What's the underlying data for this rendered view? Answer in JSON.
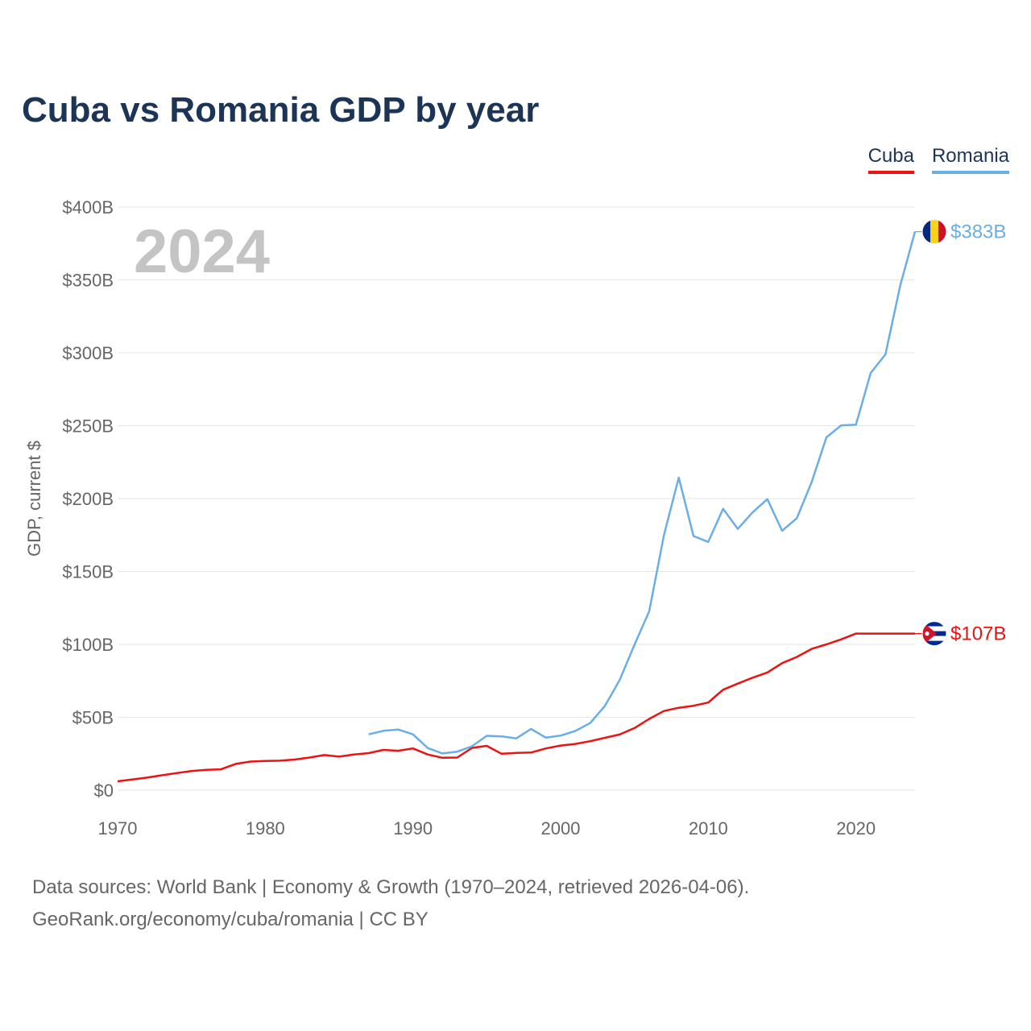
{
  "title": "Cuba vs Romania GDP by year",
  "year_overlay": "2024",
  "legend": [
    {
      "label": "Cuba",
      "color": "#ee1111"
    },
    {
      "label": "Romania",
      "color": "#6aaee6"
    }
  ],
  "footer": {
    "line1": "Data sources: World Bank | Economy & Growth (1970–2024, retrieved 2026-04-06).",
    "line2": "GeoRank.org/economy/cuba/romania | CC BY"
  },
  "chart_data": {
    "type": "line",
    "title": "Cuba vs Romania GDP by year",
    "xlabel": "",
    "ylabel": "GDP, current $",
    "xlim": [
      1970,
      2024
    ],
    "ylim": [
      0,
      400
    ],
    "y_unit": "billion USD",
    "yticks": [
      0,
      50,
      100,
      150,
      200,
      250,
      300,
      350,
      400
    ],
    "ytick_labels": [
      "$0",
      "$50B",
      "$100B",
      "$150B",
      "$200B",
      "$250B",
      "$300B",
      "$350B",
      "$400B"
    ],
    "xticks": [
      1970,
      1980,
      1990,
      2000,
      2010,
      2020
    ],
    "xtick_labels": [
      "1970",
      "1980",
      "1990",
      "2000",
      "2010",
      "2020"
    ],
    "grid": true,
    "legend_position": "top-right",
    "series": [
      {
        "name": "Cuba",
        "color": "#ee1111",
        "end_label": "$107B",
        "flag": "cuba-flag",
        "x": [
          1970,
          1971,
          1972,
          1973,
          1974,
          1975,
          1976,
          1977,
          1978,
          1979,
          1980,
          1981,
          1982,
          1983,
          1984,
          1985,
          1986,
          1987,
          1988,
          1989,
          1990,
          1991,
          1992,
          1993,
          1994,
          1995,
          1996,
          1997,
          1998,
          1999,
          2000,
          2001,
          2002,
          2003,
          2004,
          2005,
          2006,
          2007,
          2008,
          2009,
          2010,
          2011,
          2012,
          2013,
          2014,
          2015,
          2016,
          2017,
          2018,
          2019,
          2020,
          2021,
          2022,
          2023,
          2024
        ],
        "values": [
          6.1,
          7.3,
          8.6,
          10.2,
          11.7,
          13.1,
          13.9,
          14.3,
          18.0,
          19.6,
          20.0,
          20.2,
          21.0,
          22.4,
          24.1,
          23.0,
          24.4,
          25.4,
          27.6,
          27.0,
          28.6,
          24.5,
          22.2,
          22.4,
          29.0,
          30.4,
          25.0,
          25.5,
          25.8,
          28.6,
          30.6,
          31.7,
          33.6,
          35.9,
          38.2,
          42.6,
          48.9,
          54.3,
          56.5,
          57.9,
          60.1,
          68.9,
          73.1,
          77.1,
          80.7,
          87.1,
          91.4,
          96.9,
          100.0,
          103.4,
          107.4,
          107.4,
          107.4,
          107.4,
          107.4
        ]
      },
      {
        "name": "Romania",
        "color": "#6aaee6",
        "end_label": "$383B",
        "flag": "romania-flag",
        "x": [
          1987,
          1988,
          1989,
          1990,
          1991,
          1992,
          1993,
          1994,
          1995,
          1996,
          1997,
          1998,
          1999,
          2000,
          2001,
          2002,
          2003,
          2004,
          2005,
          2006,
          2007,
          2008,
          2009,
          2010,
          2011,
          2012,
          2013,
          2014,
          2015,
          2016,
          2017,
          2018,
          2019,
          2020,
          2021,
          2022,
          2023,
          2024
        ],
        "values": [
          38.3,
          40.7,
          41.6,
          38.3,
          28.9,
          25.2,
          26.4,
          30.1,
          37.3,
          36.9,
          35.5,
          42.0,
          36.0,
          37.4,
          40.6,
          46.0,
          57.8,
          75.5,
          99.7,
          122.7,
          175.0,
          214.4,
          174.3,
          170.3,
          193.0,
          179.2,
          190.5,
          199.6,
          177.9,
          186.6,
          211.3,
          242.0,
          250.2,
          250.7,
          286.2,
          298.9,
          346.3,
          383.1
        ]
      }
    ]
  }
}
